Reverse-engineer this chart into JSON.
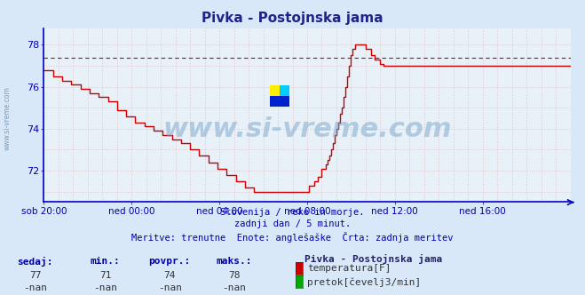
{
  "title": "Pivka - Postojnska jama",
  "bg_color": "#d8e8f8",
  "plot_bg_color": "#e8f0f8",
  "line_color": "#cc0000",
  "avg_line_color": "#cc0000",
  "grid_color_major": "#c8d0e0",
  "axis_color": "#0000cc",
  "text_color": "#0000aa",
  "ylim": [
    70.5,
    78.8
  ],
  "yticks": [
    72,
    74,
    76,
    78
  ],
  "avg_value": 77.4,
  "subtitle1": "Slovenija / reke in morje.",
  "subtitle2": "zadnji dan / 5 minut.",
  "subtitle3": "Meritve: trenutne  Enote: anglešaške  Črta: zadnja meritev",
  "footer_label1": "sedaj:",
  "footer_label2": "min.:",
  "footer_label3": "povpr.:",
  "footer_label4": "maks.:",
  "footer_val1": "77",
  "footer_val2": "71",
  "footer_val3": "74",
  "footer_val4": "78",
  "footer_nan1": "-nan",
  "footer_nan2": "-nan",
  "footer_nan3": "-nan",
  "footer_nan4": "-nan",
  "footer_station": "Pivka - Postojnska jama",
  "footer_leg1": "temperatura[F]",
  "footer_leg2": "pretok[čevelj3/min]",
  "xtick_labels": [
    "sob 20:00",
    "ned 00:00",
    "ned 04:00",
    "ned 08:00",
    "ned 12:00",
    "ned 16:00"
  ],
  "watermark": "www.si-vreme.com",
  "temp_data": [
    76.8,
    76.8,
    76.8,
    76.8,
    76.8,
    76.5,
    76.5,
    76.5,
    76.5,
    76.5,
    76.3,
    76.3,
    76.3,
    76.3,
    76.3,
    76.1,
    76.1,
    76.1,
    76.1,
    76.1,
    75.9,
    75.9,
    75.9,
    75.9,
    75.9,
    75.7,
    75.7,
    75.7,
    75.7,
    75.7,
    75.5,
    75.5,
    75.5,
    75.5,
    75.5,
    75.3,
    75.3,
    75.3,
    75.3,
    75.3,
    74.9,
    74.9,
    74.9,
    74.9,
    74.9,
    74.6,
    74.6,
    74.6,
    74.6,
    74.6,
    74.3,
    74.3,
    74.3,
    74.3,
    74.3,
    74.1,
    74.1,
    74.1,
    74.1,
    74.1,
    73.9,
    73.9,
    73.9,
    73.9,
    73.9,
    73.7,
    73.7,
    73.7,
    73.7,
    73.7,
    73.5,
    73.5,
    73.5,
    73.5,
    73.5,
    73.3,
    73.3,
    73.3,
    73.3,
    73.3,
    73.0,
    73.0,
    73.0,
    73.0,
    73.0,
    72.7,
    72.7,
    72.7,
    72.7,
    72.7,
    72.4,
    72.4,
    72.4,
    72.4,
    72.4,
    72.1,
    72.1,
    72.1,
    72.1,
    72.1,
    71.8,
    71.8,
    71.8,
    71.8,
    71.8,
    71.5,
    71.5,
    71.5,
    71.5,
    71.5,
    71.2,
    71.2,
    71.2,
    71.2,
    71.2,
    71.0,
    71.0,
    71.0,
    71.0,
    71.0,
    71.0,
    71.0,
    71.0,
    71.0,
    71.0,
    71.0,
    71.0,
    71.0,
    71.0,
    71.0,
    71.0,
    71.0,
    71.0,
    71.0,
    71.0,
    71.0,
    71.0,
    71.0,
    71.0,
    71.0,
    71.0,
    71.0,
    71.0,
    71.0,
    71.0,
    71.3,
    71.3,
    71.3,
    71.5,
    71.5,
    71.7,
    71.7,
    72.1,
    72.1,
    72.3,
    72.5,
    72.7,
    73.0,
    73.3,
    73.7,
    74.0,
    74.3,
    74.7,
    75.0,
    75.5,
    76.0,
    76.5,
    77.0,
    77.5,
    77.8,
    78.0,
    78.0,
    78.0,
    78.0,
    78.0,
    78.0,
    77.8,
    77.8,
    77.8,
    77.5,
    77.5,
    77.3,
    77.3,
    77.3,
    77.1,
    77.1,
    77.0,
    77.0,
    77.0,
    77.0,
    77.0,
    77.0,
    77.0,
    77.0,
    77.0,
    77.0,
    77.0,
    77.0,
    77.0,
    77.0,
    77.0,
    77.0,
    77.0,
    77.0,
    77.0,
    77.0,
    77.0,
    77.0,
    77.0,
    77.0,
    77.0,
    77.0,
    77.0,
    77.0,
    77.0,
    77.0,
    77.0,
    77.0,
    77.0,
    77.0,
    77.0,
    77.0,
    77.0,
    77.0,
    77.0,
    77.0,
    77.0,
    77.0,
    77.0,
    77.0,
    77.0,
    77.0,
    77.0,
    77.0,
    77.0,
    77.0,
    77.0,
    77.0,
    77.0,
    77.0,
    77.0,
    77.0,
    77.0,
    77.0,
    77.0,
    77.0,
    77.0,
    77.0,
    77.0,
    77.0,
    77.0,
    77.0,
    77.0,
    77.0,
    77.0,
    77.0,
    77.0,
    77.0,
    77.0,
    77.0,
    77.0,
    77.0,
    77.0,
    77.0,
    77.0,
    77.0,
    77.0,
    77.0,
    77.0,
    77.0,
    77.0,
    77.0,
    77.0,
    77.0,
    77.0,
    77.0,
    77.0,
    77.0,
    77.0,
    77.0,
    77.0,
    77.0,
    77.0,
    77.0,
    77.0,
    77.0,
    77.0,
    77.0,
    77.0
  ]
}
